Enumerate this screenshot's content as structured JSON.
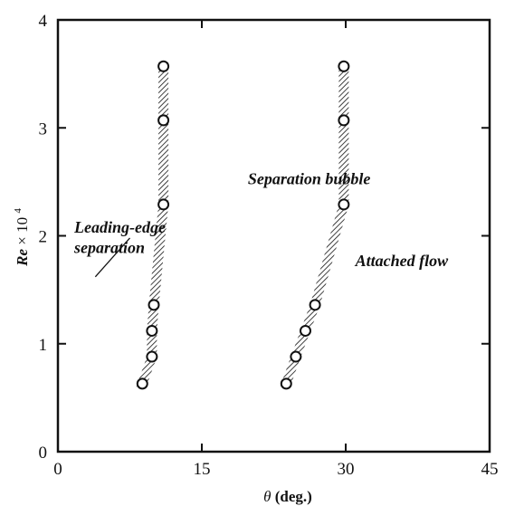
{
  "chart_data": {
    "type": "scatter",
    "xlabel_symbol": "θ",
    "xlabel_unit": "(deg.)",
    "ylabel_main": "Re",
    "ylabel_mult": "× 10",
    "ylabel_exp": "4",
    "xlim": [
      0,
      45
    ],
    "ylim": [
      0,
      4
    ],
    "xticks": [
      0,
      15,
      30,
      45
    ],
    "yticks": [
      0,
      1,
      2,
      3,
      4
    ],
    "xtick_labels": [
      "0",
      "15",
      "30",
      "45"
    ],
    "ytick_labels": [
      "0",
      "1",
      "2",
      "3",
      "4"
    ],
    "grid": false,
    "series": [
      {
        "points": [
          {
            "x": 8.8,
            "y": 0.63
          },
          {
            "x": 9.8,
            "y": 0.88
          },
          {
            "x": 9.8,
            "y": 1.12
          },
          {
            "x": 10.0,
            "y": 1.36
          },
          {
            "x": 11.0,
            "y": 2.29
          },
          {
            "x": 11.0,
            "y": 3.07
          },
          {
            "x": 11.0,
            "y": 3.57
          }
        ]
      },
      {
        "points": [
          {
            "x": 23.8,
            "y": 0.63
          },
          {
            "x": 24.8,
            "y": 0.88
          },
          {
            "x": 25.8,
            "y": 1.12
          },
          {
            "x": 26.8,
            "y": 1.36
          },
          {
            "x": 29.8,
            "y": 2.29
          },
          {
            "x": 29.8,
            "y": 3.07
          },
          {
            "x": 29.8,
            "y": 3.57
          }
        ]
      }
    ],
    "annotations": [
      {
        "text": "Separation bubble",
        "x": 19.8,
        "y": 2.48
      },
      {
        "text": "Attached flow",
        "x": 31.0,
        "y": 1.72
      },
      {
        "text": "Leading-edge",
        "x": 1.7,
        "y": 2.03
      },
      {
        "text": "separation",
        "x": 1.7,
        "y": 1.84
      }
    ]
  }
}
